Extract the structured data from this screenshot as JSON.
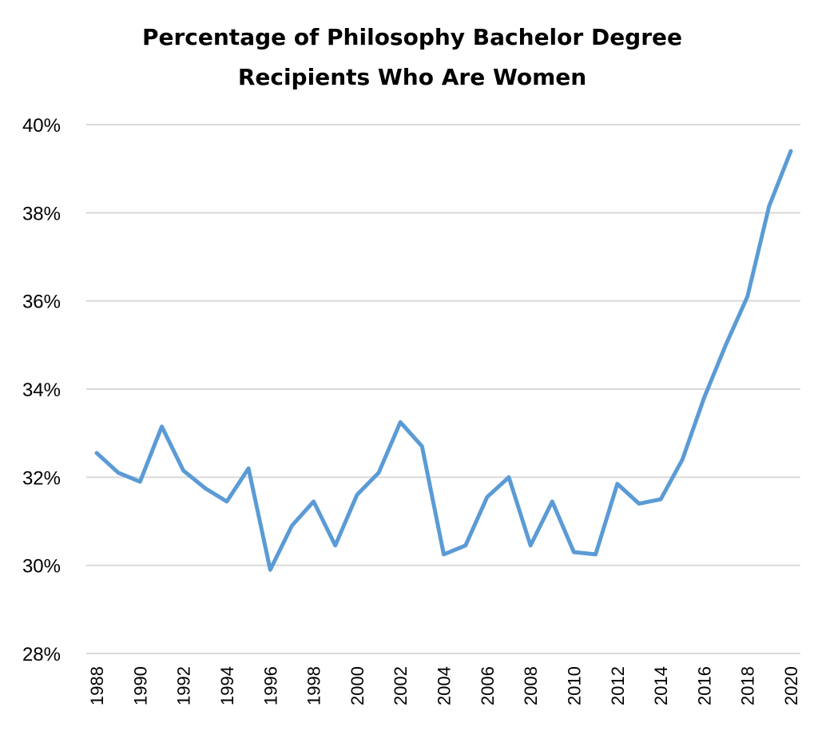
{
  "chart_data": {
    "type": "line",
    "title_lines": [
      "Percentage of Philosophy Bachelor Degree",
      "Recipients Who Are Women"
    ],
    "xlabel": "",
    "ylabel": "",
    "ylim": [
      28,
      40
    ],
    "y_ticks": [
      40,
      38,
      36,
      34,
      32,
      30,
      28
    ],
    "y_tick_labels": [
      "40%",
      "38%",
      "36%",
      "34%",
      "32%",
      "30%",
      "28%"
    ],
    "x_tick_labels": [
      "1988",
      "1990",
      "1992",
      "1994",
      "1996",
      "1998",
      "2000",
      "2002",
      "2004",
      "2006",
      "2008",
      "2010",
      "2012",
      "2014",
      "2016",
      "2018",
      "2020"
    ],
    "grid": true,
    "legend": "none",
    "series": [
      {
        "color": "#5b9bd5",
        "x": [
          1988,
          1989,
          1990,
          1991,
          1992,
          1993,
          1994,
          1995,
          1996,
          1997,
          1998,
          1999,
          2000,
          2001,
          2002,
          2003,
          2004,
          2005,
          2006,
          2007,
          2008,
          2009,
          2010,
          2011,
          2012,
          2013,
          2014,
          2015,
          2016,
          2017,
          2018,
          2019,
          2020
        ],
        "values": [
          32.55,
          32.1,
          31.9,
          33.15,
          32.15,
          31.75,
          31.45,
          32.2,
          29.9,
          30.9,
          31.45,
          30.45,
          31.6,
          32.1,
          33.25,
          32.7,
          30.25,
          30.45,
          31.55,
          32.0,
          30.45,
          31.45,
          30.3,
          30.25,
          31.85,
          31.4,
          31.5,
          32.4,
          33.8,
          35.0,
          36.1,
          38.15,
          39.4
        ]
      }
    ]
  }
}
